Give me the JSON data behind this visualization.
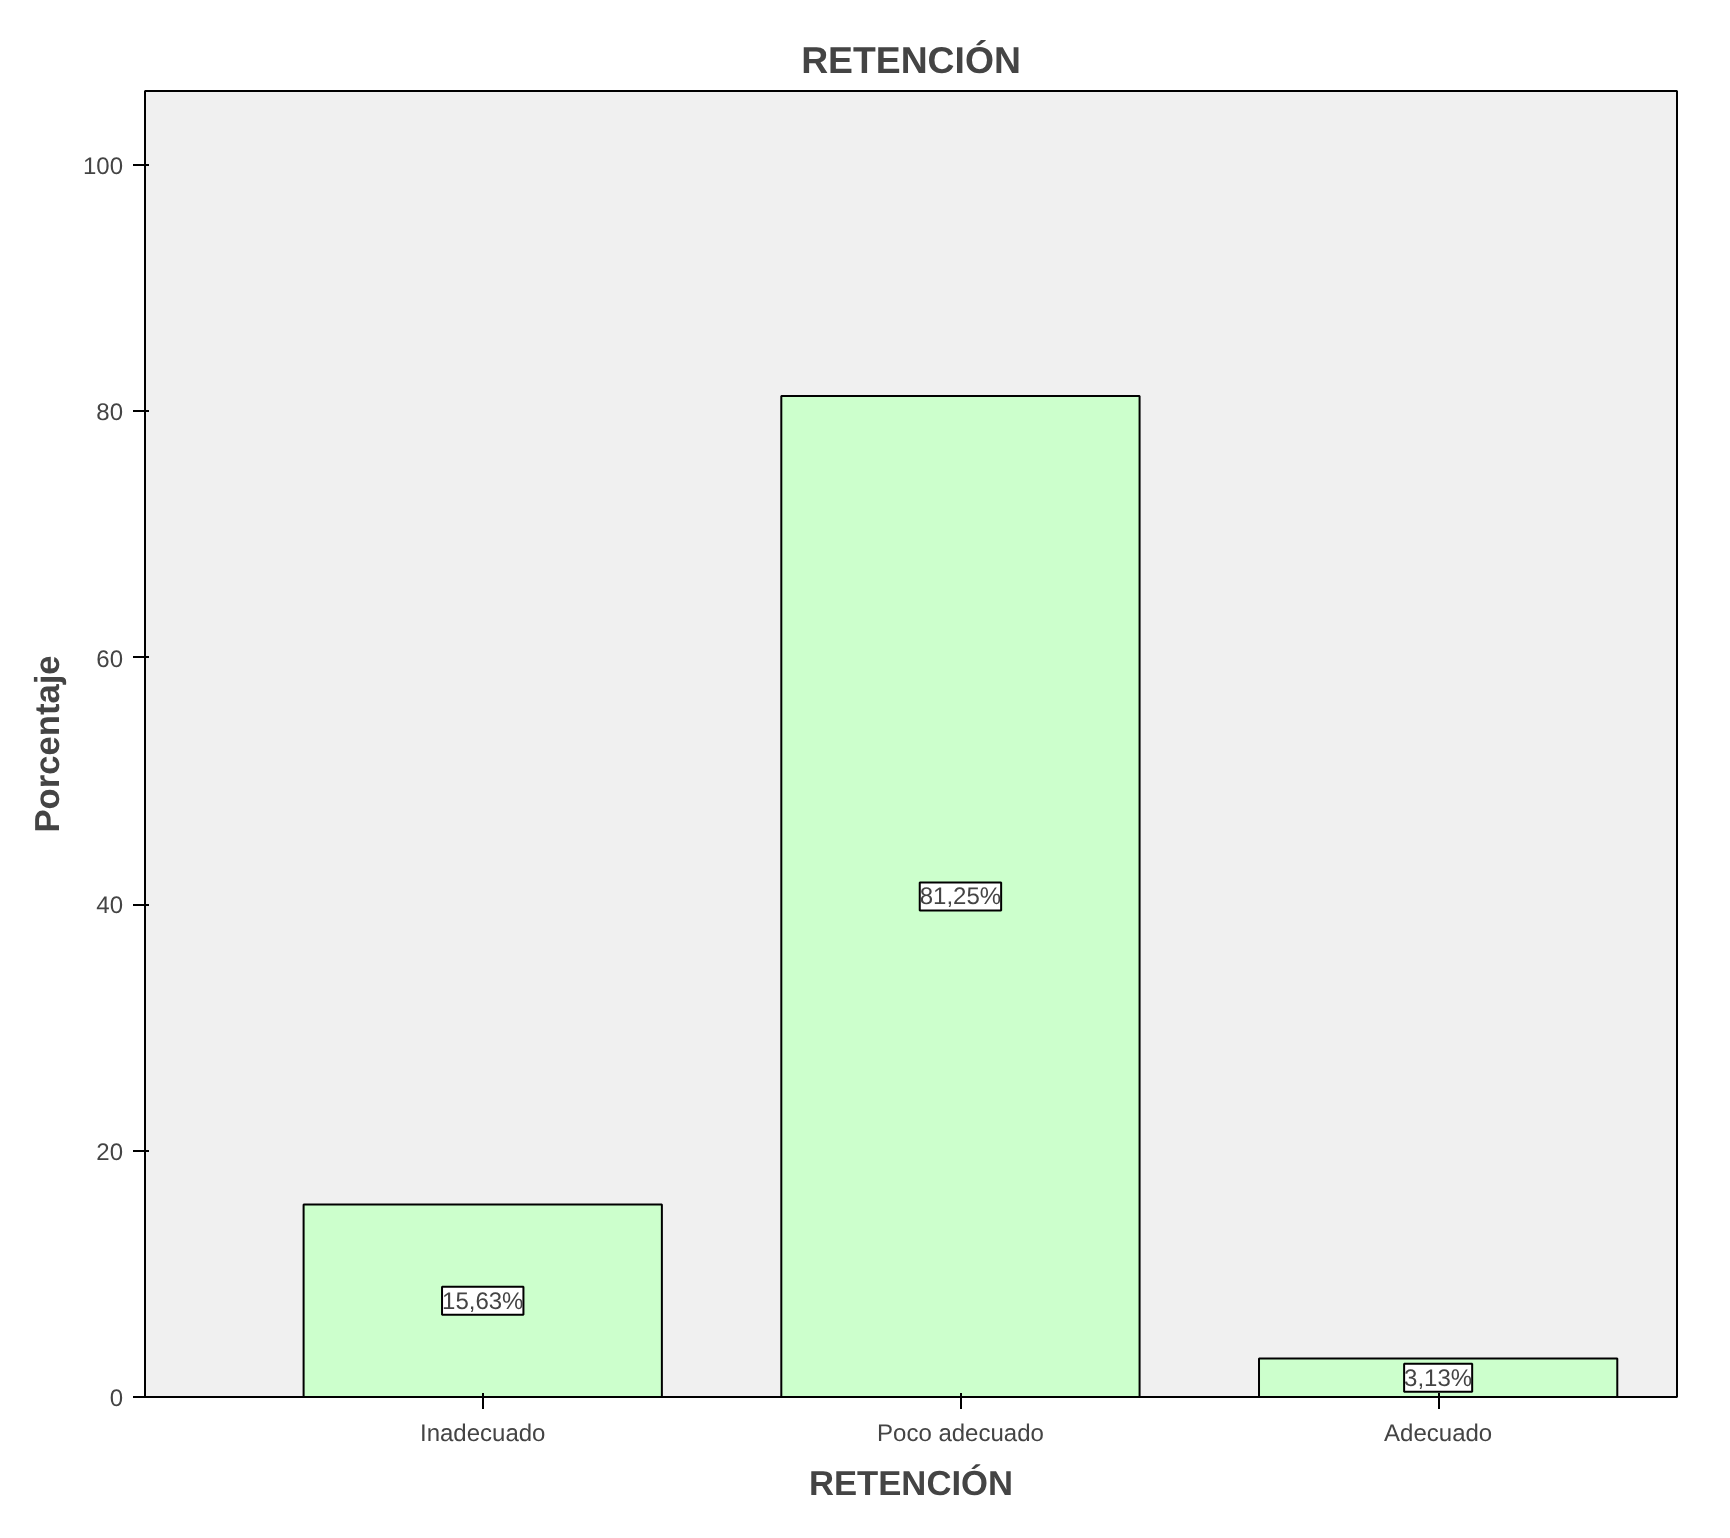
{
  "chart_data": {
    "type": "bar",
    "title": "RETENCIÓN",
    "xlabel": "RETENCIÓN",
    "ylabel": "Porcentaje",
    "categories": [
      "Inadecuado",
      "Poco adecuado",
      "Adecuado"
    ],
    "values": [
      15.63,
      81.25,
      3.13
    ],
    "color": "#ccffcc",
    "value_labels": [
      "15,63%",
      "81,25%",
      "3,13%"
    ],
    "ylim": [
      0,
      106
    ],
    "yticks": [
      0,
      20,
      40,
      60,
      80,
      100
    ],
    "grid": false
  }
}
